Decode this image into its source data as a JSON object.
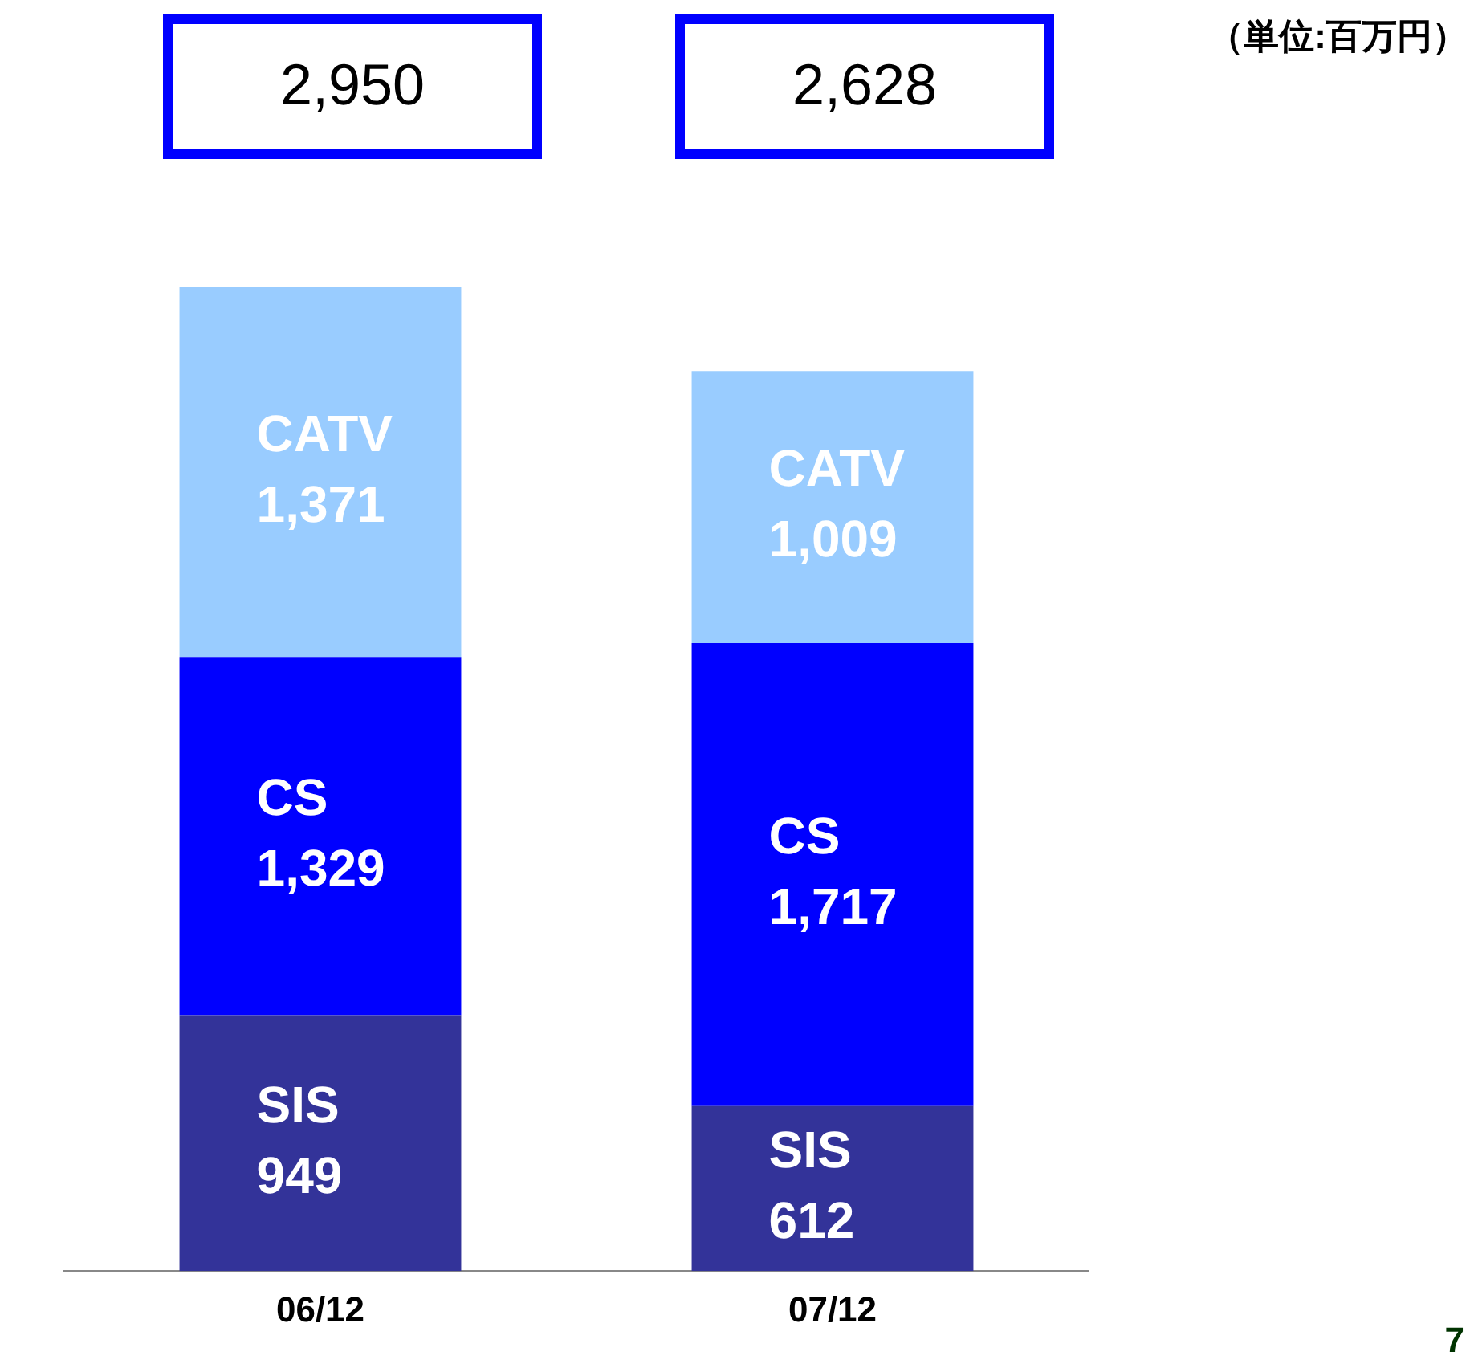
{
  "chart_data": {
    "type": "bar",
    "stacked": true,
    "categories": [
      "06/12",
      "07/12"
    ],
    "series": [
      {
        "name": "SIS",
        "color": "#333399",
        "values": [
          949,
          612
        ],
        "value_labels": [
          "949",
          "612"
        ]
      },
      {
        "name": "CS",
        "color": "#0000ff",
        "values": [
          1329,
          1717
        ],
        "value_labels": [
          "1,329",
          "1,717"
        ]
      },
      {
        "name": "CATV",
        "color": "#99ccff",
        "values": [
          1371,
          1009
        ],
        "value_labels": [
          "1,371",
          "1,009"
        ]
      }
    ],
    "legend": false,
    "grid": false,
    "annotations": [
      "2,950",
      "2,628",
      "（単位:百万円）",
      "7"
    ]
  }
}
